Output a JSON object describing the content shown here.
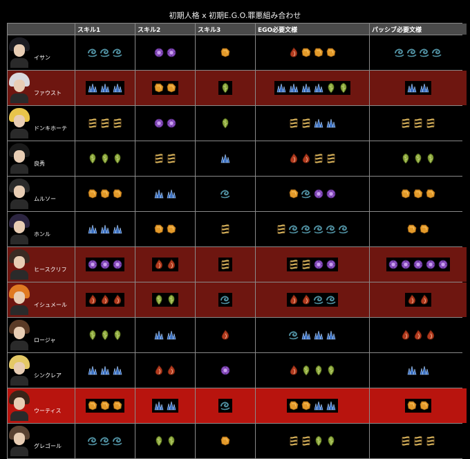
{
  "title": "初期人格 x 初期E.G.O.罪悪組み合わせ",
  "headers": [
    "",
    "スキル1",
    "スキル2",
    "スキル3",
    "EGO必要文様",
    "パッシブ必要文様"
  ],
  "sin_colors": {
    "wrath": "#b23a1e",
    "lust": "#e39a2a",
    "sloth": "#d7b15a",
    "gluttony": "#8aa53a",
    "gloom": "#4f8fa0",
    "pride": "#3a6fc2",
    "envy": "#8a4fc0"
  },
  "rows": [
    {
      "name": "イサン",
      "style": "normal",
      "hair": "#1c1c22",
      "s1": [
        "gloom",
        "gloom",
        "gloom"
      ],
      "s2": [
        "envy",
        "envy"
      ],
      "s3": [
        "lust"
      ],
      "ego": [
        "wrath",
        "lust",
        "lust",
        "lust"
      ],
      "passive": [
        "gloom",
        "gloom",
        "gloom",
        "gloom"
      ]
    },
    {
      "name": "ファウスト",
      "style": "dark",
      "hair": "#d9d9de",
      "s1": [
        "pride",
        "pride",
        "pride"
      ],
      "s2": [
        "lust",
        "lust"
      ],
      "s3": [
        "gluttony"
      ],
      "ego": [
        "pride",
        "pride",
        "pride",
        "pride",
        "gluttony",
        "gluttony"
      ],
      "passive": [
        "pride",
        "pride"
      ]
    },
    {
      "name": "ドンキホーテ",
      "style": "normal",
      "hair": "#e8c44a",
      "s1": [
        "sloth",
        "sloth",
        "sloth"
      ],
      "s2": [
        "envy",
        "envy"
      ],
      "s3": [
        "gluttony"
      ],
      "ego": [
        "sloth",
        "sloth",
        "pride",
        "pride"
      ],
      "passive": [
        "sloth",
        "sloth",
        "sloth"
      ]
    },
    {
      "name": "良秀",
      "style": "normal",
      "hair": "#1a1a1a",
      "s1": [
        "gluttony",
        "gluttony",
        "gluttony"
      ],
      "s2": [
        "sloth",
        "sloth"
      ],
      "s3": [
        "pride"
      ],
      "ego": [
        "wrath",
        "wrath",
        "sloth",
        "sloth"
      ],
      "passive": [
        "gluttony",
        "gluttony",
        "gluttony"
      ]
    },
    {
      "name": "ムルソー",
      "style": "normal",
      "hair": "#2a2a2a",
      "s1": [
        "lust",
        "lust",
        "lust"
      ],
      "s2": [
        "pride",
        "pride"
      ],
      "s3": [
        "gloom"
      ],
      "ego": [
        "lust",
        "gloom",
        "envy",
        "envy"
      ],
      "passive": [
        "lust",
        "lust",
        "lust"
      ]
    },
    {
      "name": "ホンル",
      "style": "normal",
      "hair": "#2b2440",
      "s1": [
        "pride",
        "pride",
        "pride"
      ],
      "s2": [
        "lust",
        "lust"
      ],
      "s3": [
        "sloth"
      ],
      "ego": [
        "sloth",
        "gloom",
        "gloom",
        "gloom",
        "gloom",
        "gloom"
      ],
      "passive": [
        "lust",
        "lust"
      ]
    },
    {
      "name": "ヒースクリフ",
      "style": "dark",
      "hair": "#3a2a22",
      "s1": [
        "envy",
        "envy",
        "envy"
      ],
      "s2": [
        "wrath",
        "wrath"
      ],
      "s3": [
        "sloth"
      ],
      "ego": [
        "sloth",
        "sloth",
        "envy",
        "envy"
      ],
      "passive": [
        "envy",
        "envy",
        "envy",
        "envy",
        "envy"
      ]
    },
    {
      "name": "イシュメール",
      "style": "dark",
      "hair": "#e07a22",
      "s1": [
        "wrath",
        "wrath",
        "wrath"
      ],
      "s2": [
        "gluttony",
        "gluttony"
      ],
      "s3": [
        "gloom"
      ],
      "ego": [
        "wrath",
        "wrath",
        "gloom",
        "gloom"
      ],
      "passive": [
        "wrath",
        "wrath"
      ]
    },
    {
      "name": "ロージャ",
      "style": "normal",
      "hair": "#5a3a26",
      "s1": [
        "gluttony",
        "gluttony",
        "gluttony"
      ],
      "s2": [
        "pride",
        "pride"
      ],
      "s3": [
        "wrath"
      ],
      "ego": [
        "gloom",
        "pride",
        "pride",
        "pride"
      ],
      "passive": [
        "wrath",
        "wrath",
        "wrath"
      ]
    },
    {
      "name": "シンクレア",
      "style": "normal",
      "hair": "#e4c866",
      "s1": [
        "pride",
        "pride",
        "pride"
      ],
      "s2": [
        "wrath",
        "wrath"
      ],
      "s3": [
        "envy"
      ],
      "ego": [
        "wrath",
        "gluttony",
        "gluttony",
        "gluttony"
      ],
      "passive": [
        "pride",
        "pride"
      ]
    },
    {
      "name": "ウーティス",
      "style": "red",
      "hair": "#3a2418",
      "s1": [
        "lust",
        "lust",
        "lust"
      ],
      "s2": [
        "pride",
        "pride"
      ],
      "s3": [
        "gloom"
      ],
      "ego": [
        "lust",
        "lust",
        "pride",
        "pride"
      ],
      "passive": [
        "lust",
        "lust"
      ]
    },
    {
      "name": "グレゴール",
      "style": "normal",
      "hair": "#5a4232",
      "s1": [
        "gloom",
        "gloom",
        "gloom"
      ],
      "s2": [
        "gluttony",
        "gluttony"
      ],
      "s3": [
        "lust"
      ],
      "ego": [
        "sloth",
        "sloth",
        "gluttony",
        "gluttony"
      ],
      "passive": [
        "sloth",
        "sloth",
        "sloth"
      ]
    }
  ]
}
